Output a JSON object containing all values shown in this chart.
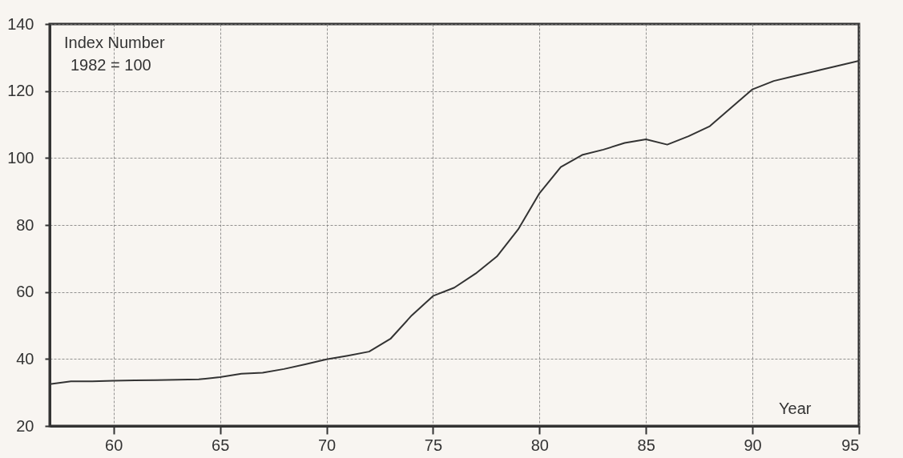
{
  "chart_data": {
    "type": "line",
    "xlabel": "Year",
    "ylabel": "Index Number",
    "annotations": [
      "1982 = 100"
    ],
    "x": [
      57,
      58,
      59,
      60,
      61,
      62,
      63,
      64,
      65,
      66,
      67,
      68,
      69,
      70,
      71,
      72,
      73,
      74,
      75,
      76,
      77,
      78,
      79,
      80,
      81,
      82,
      83,
      84,
      85,
      86,
      87,
      88,
      89,
      90,
      91,
      92,
      93,
      94,
      95
    ],
    "series": [
      {
        "color": "#333333",
        "values": [
          32.5,
          33.3,
          33.3,
          33.5,
          33.6,
          33.7,
          33.8,
          33.9,
          34.6,
          35.6,
          35.9,
          37,
          38.4,
          39.9,
          41,
          42.2,
          46,
          53,
          58.8,
          61.3,
          65.5,
          70.6,
          78.7,
          89.5,
          97.3,
          100.9,
          102.5,
          104.5,
          105.6,
          104,
          106.5,
          109.5,
          115,
          120.5,
          123,
          124.5,
          126,
          127.5,
          129
        ]
      }
    ],
    "xlim": [
      57,
      95
    ],
    "xticks": [
      60,
      65,
      70,
      75,
      80,
      85,
      90,
      95
    ],
    "ylim": [
      20,
      140
    ],
    "yticks": [
      20,
      40,
      60,
      80,
      100,
      120,
      140
    ],
    "grid": true,
    "marker": "none",
    "line_style": "solid"
  }
}
